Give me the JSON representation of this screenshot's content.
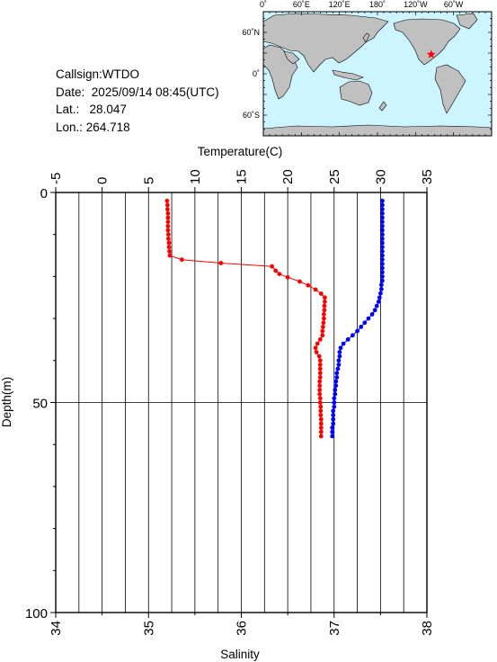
{
  "station": {
    "callsign_label": "Callsign:",
    "callsign": "WTDO",
    "date_label": "Date:",
    "date": "2025/09/14 08:45(UTC)",
    "lat_label": "Lat.:",
    "lat": "28.047",
    "lon_label": "Lon.:",
    "lon": "264.718"
  },
  "map": {
    "top_ticks": [
      "0˚",
      "60˚E",
      "120˚E",
      "180˚",
      "120˚W",
      "60˚W"
    ],
    "lat_ticks": [
      "60˚N",
      "0˚",
      "60˚S"
    ],
    "ocean_color": "#ccf5ff",
    "land_color": "#c0c0c0",
    "marker": "red-star",
    "marker_color": "#ff0000"
  },
  "chart_data": {
    "type": "line",
    "title": "",
    "ylabel": "Depth(m)",
    "ylim": [
      0,
      100
    ],
    "yticks": [
      0,
      50,
      100
    ],
    "y_inverted": true,
    "top_axis": {
      "label": "Temperature(C)",
      "lim": [
        -5,
        35
      ],
      "ticks": [
        -5,
        0,
        5,
        10,
        15,
        20,
        25,
        30,
        35
      ]
    },
    "bottom_axis": {
      "label": "Salinity",
      "lim": [
        34,
        38
      ],
      "ticks": [
        34,
        35,
        36,
        37,
        38
      ]
    },
    "grid": "vertical",
    "series": [
      {
        "axis": "top",
        "color": "#ff0000",
        "points": [
          [
            7.0,
            2
          ],
          [
            7.05,
            3
          ],
          [
            7.05,
            4
          ],
          [
            7.1,
            5
          ],
          [
            7.1,
            6
          ],
          [
            7.1,
            7
          ],
          [
            7.1,
            8
          ],
          [
            7.1,
            9
          ],
          [
            7.15,
            10
          ],
          [
            7.15,
            11
          ],
          [
            7.2,
            12
          ],
          [
            7.2,
            13
          ],
          [
            7.25,
            14
          ],
          [
            7.3,
            15
          ],
          [
            8.6,
            16
          ],
          [
            12.8,
            16.8
          ],
          [
            18.3,
            17.6
          ],
          [
            18.7,
            18.6
          ],
          [
            19.1,
            19.4
          ],
          [
            20.0,
            20.2
          ],
          [
            21.3,
            21.2
          ],
          [
            22.2,
            22.1
          ],
          [
            23.0,
            23.1
          ],
          [
            23.6,
            24.1
          ],
          [
            24.0,
            25.0
          ],
          [
            24.0,
            26
          ],
          [
            23.95,
            27
          ],
          [
            23.95,
            28
          ],
          [
            23.9,
            29
          ],
          [
            23.9,
            30
          ],
          [
            23.85,
            31
          ],
          [
            23.8,
            32
          ],
          [
            23.75,
            33
          ],
          [
            23.75,
            34
          ],
          [
            23.5,
            35
          ],
          [
            23.2,
            36
          ],
          [
            23.0,
            37
          ],
          [
            23.1,
            38
          ],
          [
            23.4,
            39
          ],
          [
            23.5,
            40
          ],
          [
            23.5,
            41
          ],
          [
            23.5,
            42
          ],
          [
            23.5,
            43
          ],
          [
            23.5,
            44
          ],
          [
            23.45,
            45
          ],
          [
            23.45,
            46
          ],
          [
            23.45,
            47
          ],
          [
            23.45,
            48
          ],
          [
            23.5,
            49
          ],
          [
            23.5,
            50
          ],
          [
            23.55,
            51
          ],
          [
            23.55,
            52
          ],
          [
            23.55,
            53
          ],
          [
            23.6,
            54
          ],
          [
            23.6,
            55
          ],
          [
            23.6,
            56
          ],
          [
            23.6,
            57
          ],
          [
            23.6,
            58
          ]
        ]
      },
      {
        "axis": "bottom",
        "color": "#0000ff",
        "points": [
          [
            37.52,
            2
          ],
          [
            37.52,
            3
          ],
          [
            37.52,
            4
          ],
          [
            37.52,
            5
          ],
          [
            37.52,
            6
          ],
          [
            37.52,
            7
          ],
          [
            37.52,
            8
          ],
          [
            37.52,
            9
          ],
          [
            37.52,
            10
          ],
          [
            37.52,
            11
          ],
          [
            37.52,
            12
          ],
          [
            37.52,
            13
          ],
          [
            37.52,
            14
          ],
          [
            37.52,
            15
          ],
          [
            37.52,
            16
          ],
          [
            37.52,
            17
          ],
          [
            37.52,
            18
          ],
          [
            37.52,
            19
          ],
          [
            37.52,
            20
          ],
          [
            37.52,
            21
          ],
          [
            37.51,
            22
          ],
          [
            37.51,
            23
          ],
          [
            37.5,
            24
          ],
          [
            37.49,
            25
          ],
          [
            37.48,
            26
          ],
          [
            37.46,
            27
          ],
          [
            37.44,
            28
          ],
          [
            37.41,
            29
          ],
          [
            37.37,
            30
          ],
          [
            37.33,
            31
          ],
          [
            37.29,
            32
          ],
          [
            37.25,
            33
          ],
          [
            37.2,
            34
          ],
          [
            37.15,
            35
          ],
          [
            37.1,
            36
          ],
          [
            37.07,
            37
          ],
          [
            37.06,
            38
          ],
          [
            37.06,
            39
          ],
          [
            37.05,
            40
          ],
          [
            37.05,
            41
          ],
          [
            37.04,
            42
          ],
          [
            37.03,
            43
          ],
          [
            37.03,
            44
          ],
          [
            37.02,
            45
          ],
          [
            37.02,
            46
          ],
          [
            37.01,
            47
          ],
          [
            37.01,
            48
          ],
          [
            37.0,
            49
          ],
          [
            37.0,
            50
          ],
          [
            37.0,
            51
          ],
          [
            36.99,
            52
          ],
          [
            36.99,
            53
          ],
          [
            36.99,
            54
          ],
          [
            36.99,
            55
          ],
          [
            36.98,
            56
          ],
          [
            36.98,
            57
          ],
          [
            36.98,
            58
          ]
        ]
      }
    ]
  }
}
